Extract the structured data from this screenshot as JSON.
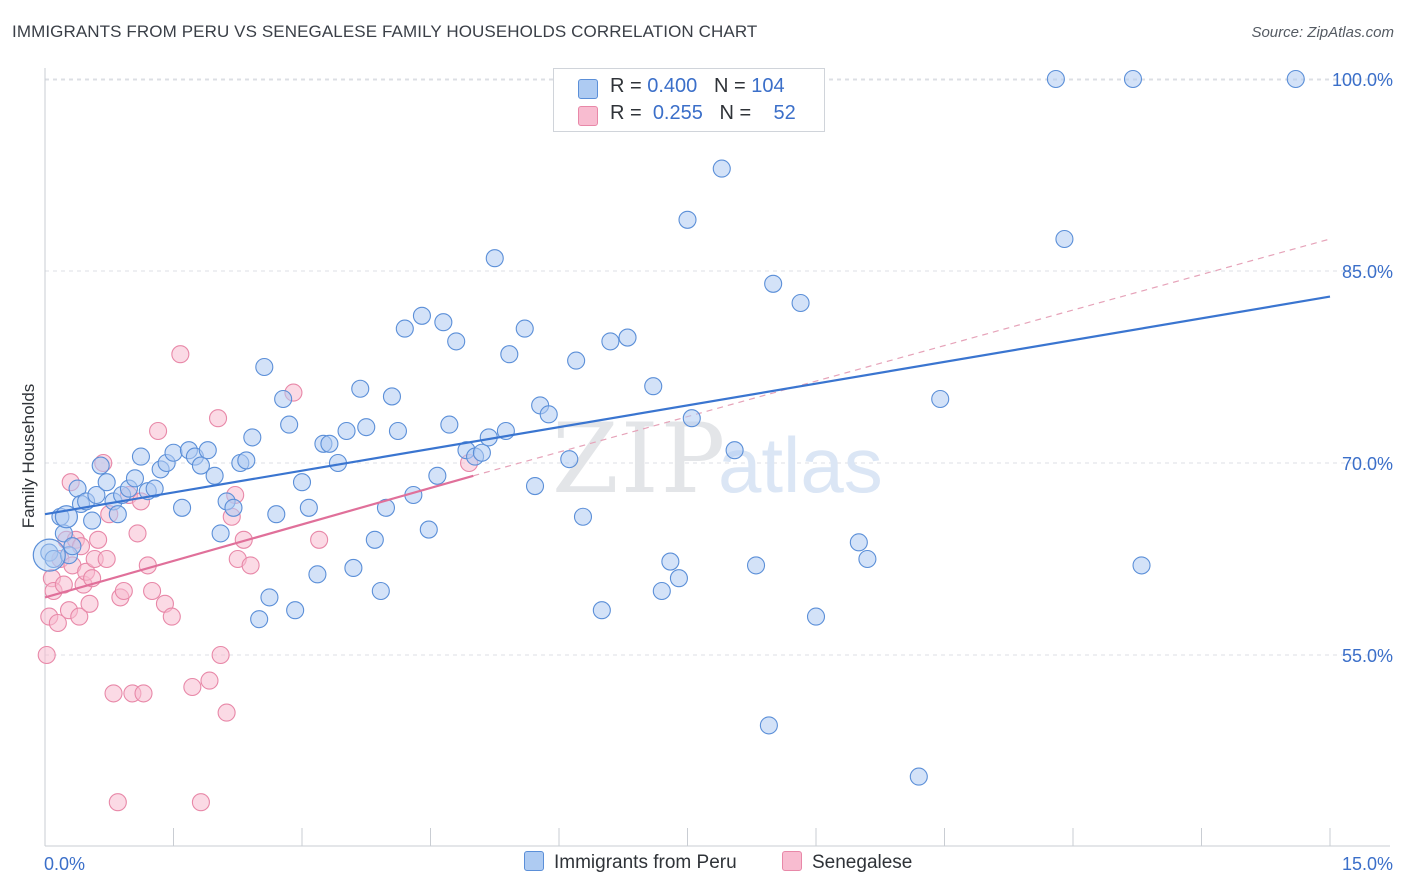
{
  "title": "IMMIGRANTS FROM PERU VS SENEGALESE FAMILY HOUSEHOLDS CORRELATION CHART",
  "source": "Source: ZipAtlas.com",
  "watermark": {
    "zip": "ZIP",
    "atlas": "atlas"
  },
  "legend": {
    "series1": {
      "r_label": "R =",
      "r_value": "0.400",
      "n_label": "N =",
      "n_value": "104"
    },
    "series2": {
      "r_label": "R =",
      "r_value": "0.255",
      "n_label": "N =",
      "n_value": "52"
    }
  },
  "colors": {
    "blue_fill": "#aecbf2",
    "blue_stroke": "#5b8fd8",
    "blue_line": "#3a75d0",
    "pink_fill": "#f8bcd0",
    "pink_stroke": "#e888a8",
    "pink_line": "#e0709a",
    "tick_label": "#3b6fc9",
    "grid": "#dcdfe4"
  },
  "chart_data": {
    "type": "scatter",
    "title": "IMMIGRANTS FROM PERU VS SENEGALESE FAMILY HOUSEHOLDS CORRELATION CHART",
    "xlabel": "",
    "ylabel": "Family Households",
    "xlim": [
      0,
      15
    ],
    "ylim": [
      40,
      101.5
    ],
    "x_tick_labels": [
      "0.0%",
      "15.0%"
    ],
    "y_ticks": [
      55,
      70,
      85,
      100
    ],
    "y_tick_labels": [
      "55.0%",
      "70.0%",
      "85.0%",
      "100.0%"
    ],
    "series": [
      {
        "name": "Immigrants from Peru",
        "r": 0.4,
        "n": 104,
        "trend": {
          "x": [
            0,
            15
          ],
          "y": [
            66.0,
            83.0
          ]
        },
        "points": [
          [
            0.05,
            63.0
          ],
          [
            0.1,
            62.5
          ],
          [
            0.18,
            65.8
          ],
          [
            0.22,
            64.5
          ],
          [
            0.28,
            62.8
          ],
          [
            0.32,
            63.5
          ],
          [
            0.38,
            68.0
          ],
          [
            0.42,
            66.8
          ],
          [
            0.48,
            67.0
          ],
          [
            0.55,
            65.5
          ],
          [
            0.6,
            67.5
          ],
          [
            0.65,
            69.8
          ],
          [
            0.72,
            68.5
          ],
          [
            0.8,
            67.0
          ],
          [
            0.85,
            66.0
          ],
          [
            0.9,
            67.5
          ],
          [
            0.98,
            68.0
          ],
          [
            1.05,
            68.8
          ],
          [
            1.12,
            70.5
          ],
          [
            1.2,
            67.8
          ],
          [
            1.28,
            68.0
          ],
          [
            1.35,
            69.5
          ],
          [
            1.42,
            70.0
          ],
          [
            1.5,
            70.8
          ],
          [
            1.6,
            66.5
          ],
          [
            1.68,
            71.0
          ],
          [
            1.75,
            70.5
          ],
          [
            1.82,
            69.8
          ],
          [
            1.9,
            71.0
          ],
          [
            1.98,
            69.0
          ],
          [
            2.05,
            64.5
          ],
          [
            2.12,
            67.0
          ],
          [
            2.2,
            66.5
          ],
          [
            2.28,
            70.0
          ],
          [
            2.35,
            70.2
          ],
          [
            2.42,
            72.0
          ],
          [
            2.5,
            57.8
          ],
          [
            2.56,
            77.5
          ],
          [
            2.62,
            59.5
          ],
          [
            2.7,
            66.0
          ],
          [
            2.78,
            75.0
          ],
          [
            2.85,
            73.0
          ],
          [
            2.92,
            58.5
          ],
          [
            3.0,
            68.5
          ],
          [
            3.08,
            66.5
          ],
          [
            3.18,
            61.3
          ],
          [
            3.25,
            71.5
          ],
          [
            3.32,
            71.5
          ],
          [
            3.42,
            70.0
          ],
          [
            3.52,
            72.5
          ],
          [
            3.6,
            61.8
          ],
          [
            3.68,
            75.8
          ],
          [
            3.75,
            72.8
          ],
          [
            3.85,
            64.0
          ],
          [
            3.92,
            60.0
          ],
          [
            3.98,
            66.5
          ],
          [
            4.05,
            75.2
          ],
          [
            4.12,
            72.5
          ],
          [
            4.2,
            80.5
          ],
          [
            4.3,
            67.5
          ],
          [
            4.4,
            81.5
          ],
          [
            4.48,
            64.8
          ],
          [
            4.58,
            69.0
          ],
          [
            4.65,
            81.0
          ],
          [
            4.72,
            73.0
          ],
          [
            4.8,
            79.5
          ],
          [
            4.92,
            71.0
          ],
          [
            5.02,
            70.5
          ],
          [
            5.1,
            70.8
          ],
          [
            5.18,
            72.0
          ],
          [
            5.25,
            86.0
          ],
          [
            5.38,
            72.5
          ],
          [
            5.42,
            78.5
          ],
          [
            5.6,
            80.5
          ],
          [
            5.72,
            68.2
          ],
          [
            5.78,
            74.5
          ],
          [
            5.88,
            73.8
          ],
          [
            6.12,
            70.3
          ],
          [
            6.2,
            78.0
          ],
          [
            6.28,
            65.8
          ],
          [
            6.5,
            58.5
          ],
          [
            6.6,
            79.5
          ],
          [
            6.8,
            79.8
          ],
          [
            7.1,
            76.0
          ],
          [
            7.2,
            60.0
          ],
          [
            7.3,
            62.3
          ],
          [
            7.4,
            61.0
          ],
          [
            7.55,
            73.5
          ],
          [
            7.5,
            89.0
          ],
          [
            7.9,
            93.0
          ],
          [
            8.05,
            71.0
          ],
          [
            8.3,
            62.0
          ],
          [
            8.45,
            49.5
          ],
          [
            8.5,
            84.0
          ],
          [
            8.82,
            82.5
          ],
          [
            9.0,
            58.0
          ],
          [
            9.5,
            63.8
          ],
          [
            9.6,
            62.5
          ],
          [
            10.2,
            45.5
          ],
          [
            10.45,
            75.0
          ],
          [
            11.8,
            100.0
          ],
          [
            11.9,
            87.5
          ],
          [
            12.7,
            100.0
          ],
          [
            12.8,
            62.0
          ],
          [
            14.6,
            100.0
          ]
        ]
      },
      {
        "name": "Senegalese",
        "r": 0.255,
        "n": 52,
        "trend": {
          "x": [
            0,
            5
          ],
          "y": [
            59.5,
            69.0
          ]
        },
        "points": [
          [
            0.02,
            55.0
          ],
          [
            0.05,
            58.0
          ],
          [
            0.08,
            61.0
          ],
          [
            0.1,
            60.0
          ],
          [
            0.15,
            57.5
          ],
          [
            0.18,
            62.5
          ],
          [
            0.22,
            60.5
          ],
          [
            0.25,
            64.0
          ],
          [
            0.28,
            58.5
          ],
          [
            0.3,
            68.5
          ],
          [
            0.32,
            62.0
          ],
          [
            0.36,
            64.0
          ],
          [
            0.4,
            58.0
          ],
          [
            0.42,
            63.5
          ],
          [
            0.45,
            60.5
          ],
          [
            0.48,
            61.5
          ],
          [
            0.52,
            59.0
          ],
          [
            0.55,
            61.0
          ],
          [
            0.58,
            62.5
          ],
          [
            0.62,
            64.0
          ],
          [
            0.68,
            70.0
          ],
          [
            0.72,
            62.5
          ],
          [
            0.75,
            66.0
          ],
          [
            0.8,
            52.0
          ],
          [
            0.85,
            43.5
          ],
          [
            0.88,
            59.5
          ],
          [
            0.92,
            60.0
          ],
          [
            0.98,
            67.5
          ],
          [
            1.02,
            52.0
          ],
          [
            1.08,
            64.5
          ],
          [
            1.12,
            67.0
          ],
          [
            1.15,
            52.0
          ],
          [
            1.2,
            62.0
          ],
          [
            1.25,
            60.0
          ],
          [
            1.32,
            72.5
          ],
          [
            1.4,
            59.0
          ],
          [
            1.48,
            58.0
          ],
          [
            1.58,
            78.5
          ],
          [
            1.72,
            52.5
          ],
          [
            1.82,
            43.5
          ],
          [
            1.92,
            53.0
          ],
          [
            2.02,
            73.5
          ],
          [
            2.05,
            55.0
          ],
          [
            2.12,
            50.5
          ],
          [
            2.18,
            65.8
          ],
          [
            2.22,
            67.5
          ],
          [
            2.25,
            62.5
          ],
          [
            2.32,
            64.0
          ],
          [
            2.4,
            62.0
          ],
          [
            2.9,
            75.5
          ],
          [
            3.2,
            64.0
          ],
          [
            4.95,
            70.0
          ]
        ]
      }
    ],
    "reference_line": {
      "style": "dashed",
      "x": [
        5.0,
        15.0
      ],
      "y": [
        69.0,
        87.5
      ]
    }
  },
  "x_axis": {
    "min_label": "0.0%",
    "max_label": "15.0%"
  },
  "y_axis": {
    "label": "Family Households"
  }
}
